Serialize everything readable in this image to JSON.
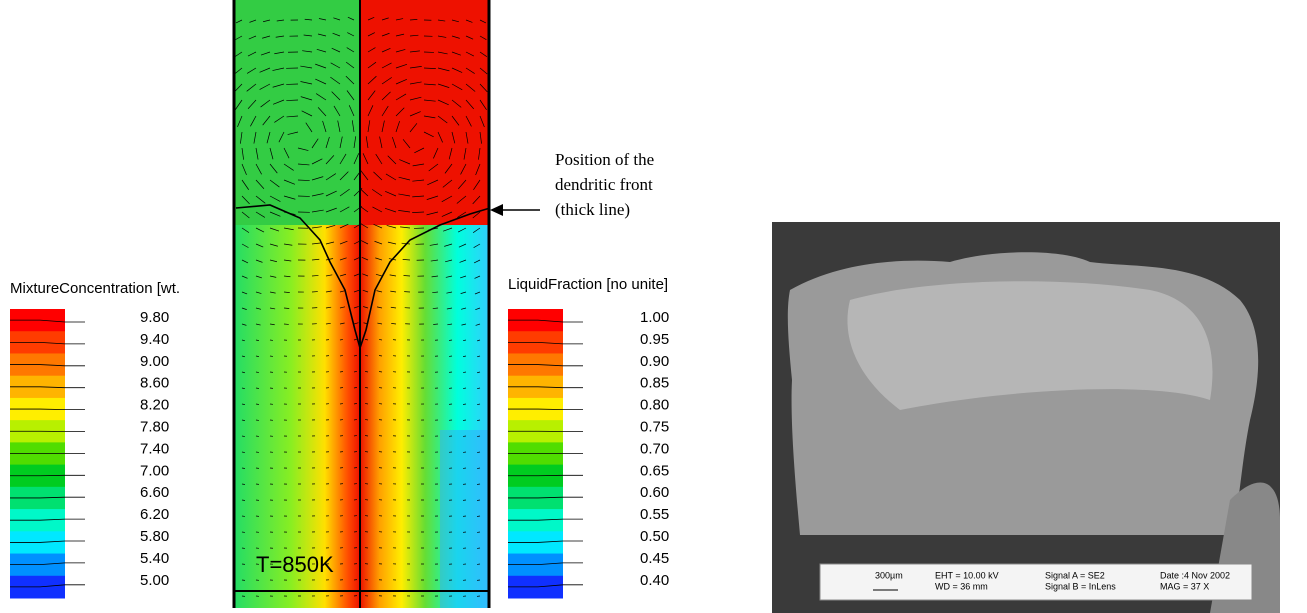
{
  "left_legend": {
    "title": "MixtureConcentration [wt.",
    "labels": [
      "9.80",
      "9.40",
      "9.00",
      "8.60",
      "8.20",
      "7.80",
      "7.40",
      "7.00",
      "6.60",
      "6.20",
      "5.80",
      "5.40",
      "5.00"
    ]
  },
  "right_legend": {
    "title": "LiquidFraction [no unite]",
    "labels": [
      "1.00",
      "0.95",
      "0.90",
      "0.85",
      "0.80",
      "0.75",
      "0.70",
      "0.65",
      "0.60",
      "0.55",
      "0.50",
      "0.45",
      "0.40"
    ]
  },
  "simulation": {
    "label": "T=850K"
  },
  "annotation": {
    "lines": [
      "Position of the",
      "dendritic front",
      "(thick line)"
    ]
  },
  "micrograph": {
    "scale": "300µm",
    "info": [
      "EHT = 10.00 kV",
      "WD =  36 mm",
      "Signal A = SE2",
      "Signal B = InLens",
      "Date :4 Nov 2002",
      "MAG =    37 X"
    ]
  }
}
